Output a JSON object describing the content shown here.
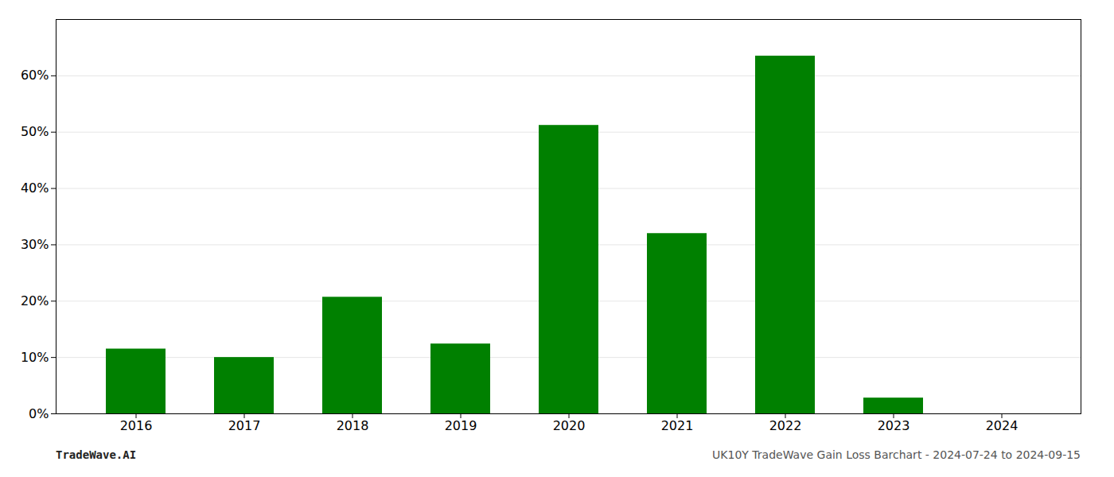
{
  "chart_data": {
    "type": "bar",
    "categories": [
      "2016",
      "2017",
      "2018",
      "2019",
      "2020",
      "2021",
      "2022",
      "2023",
      "2024"
    ],
    "values": [
      0.115,
      0.1,
      0.207,
      0.124,
      0.512,
      0.32,
      0.635,
      0.028,
      0.0
    ],
    "color": "#008000",
    "ylim": [
      0,
      0.7
    ],
    "yticks": [
      {
        "value": 0.0,
        "label": "0%"
      },
      {
        "value": 0.1,
        "label": "10%"
      },
      {
        "value": 0.2,
        "label": "20%"
      },
      {
        "value": 0.3,
        "label": "30%"
      },
      {
        "value": 0.4,
        "label": "40%"
      },
      {
        "value": 0.5,
        "label": "50%"
      },
      {
        "value": 0.6,
        "label": "60%"
      }
    ],
    "grid": true,
    "annotations": [
      "TradeWave.AI",
      "UK10Y TradeWave Gain Loss Barchart - 2024-07-24 to 2024-09-15"
    ]
  }
}
